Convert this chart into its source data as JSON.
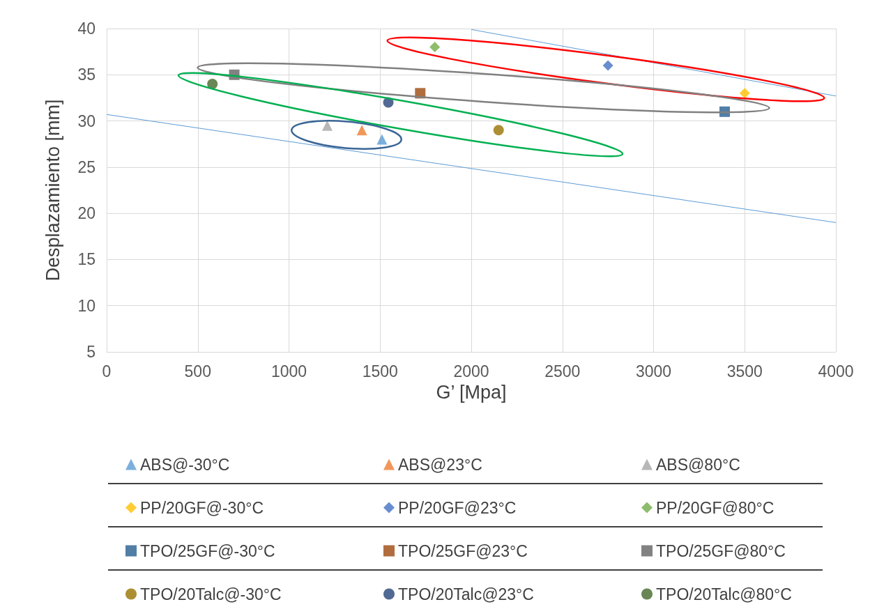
{
  "chart_data": {
    "type": "scatter",
    "xlabel": "G’ [Mpa]",
    "ylabel": "Desplazamiento [mm]",
    "xlim": [
      0,
      4000
    ],
    "xticks": [
      0,
      500,
      1000,
      1500,
      2000,
      2500,
      3000,
      3500,
      4000
    ],
    "ylim": [
      5,
      40
    ],
    "yticks": [
      5,
      10,
      15,
      20,
      25,
      30,
      35,
      40
    ],
    "grid": true,
    "legend": "bottom",
    "series": [
      {
        "name": "ABS@-30°C",
        "color": "#5b9bd5",
        "marker": "triangle",
        "x": [
          1510
        ],
        "values": [
          28
        ]
      },
      {
        "name": "ABS@23°C",
        "color": "#ed7d31",
        "marker": "triangle",
        "x": [
          1400
        ],
        "values": [
          29
        ]
      },
      {
        "name": "ABS@80°C",
        "color": "#a5a5a5",
        "marker": "triangle",
        "x": [
          1210
        ],
        "values": [
          29.5
        ]
      },
      {
        "name": "PP/20GF@-30°C",
        "color": "#ffc000",
        "marker": "diamond",
        "x": [
          3500
        ],
        "values": [
          33
        ]
      },
      {
        "name": "PP/20GF@23°C",
        "color": "#4472c4",
        "marker": "diamond",
        "x": [
          2750
        ],
        "values": [
          36
        ]
      },
      {
        "name": "PP/20GF@80°C",
        "color": "#70ad47",
        "marker": "diamond",
        "x": [
          1800
        ],
        "values": [
          38
        ]
      },
      {
        "name": "TPO/25GF@-30°C",
        "color": "#255e91",
        "marker": "square",
        "x": [
          3390
        ],
        "values": [
          31
        ]
      },
      {
        "name": "TPO/25GF@23°C",
        "color": "#9e480e",
        "marker": "square",
        "x": [
          1720
        ],
        "values": [
          33
        ]
      },
      {
        "name": "TPO/25GF@80°C",
        "color": "#636363",
        "marker": "square",
        "x": [
          700
        ],
        "values": [
          35
        ]
      },
      {
        "name": "TPO/20Talc@-30°C",
        "color": "#997300",
        "marker": "circle",
        "x": [
          2150
        ],
        "values": [
          29
        ]
      },
      {
        "name": "TPO/20Talc@23°C",
        "color": "#264478",
        "marker": "circle",
        "x": [
          1545
        ],
        "values": [
          32
        ]
      },
      {
        "name": "TPO/20Talc@80°C",
        "color": "#43682b",
        "marker": "circle",
        "x": [
          580
        ],
        "values": [
          34
        ]
      },
      {
        "type": "line",
        "color": "#5b9bd5",
        "marker": "none",
        "x": [
          2000,
          4000
        ],
        "values": [
          39.9,
          32.7
        ]
      },
      {
        "type": "line",
        "color": "#5b9bd5",
        "marker": "none",
        "x": [
          0,
          4000
        ],
        "values": [
          30.7,
          19
        ]
      }
    ]
  }
}
